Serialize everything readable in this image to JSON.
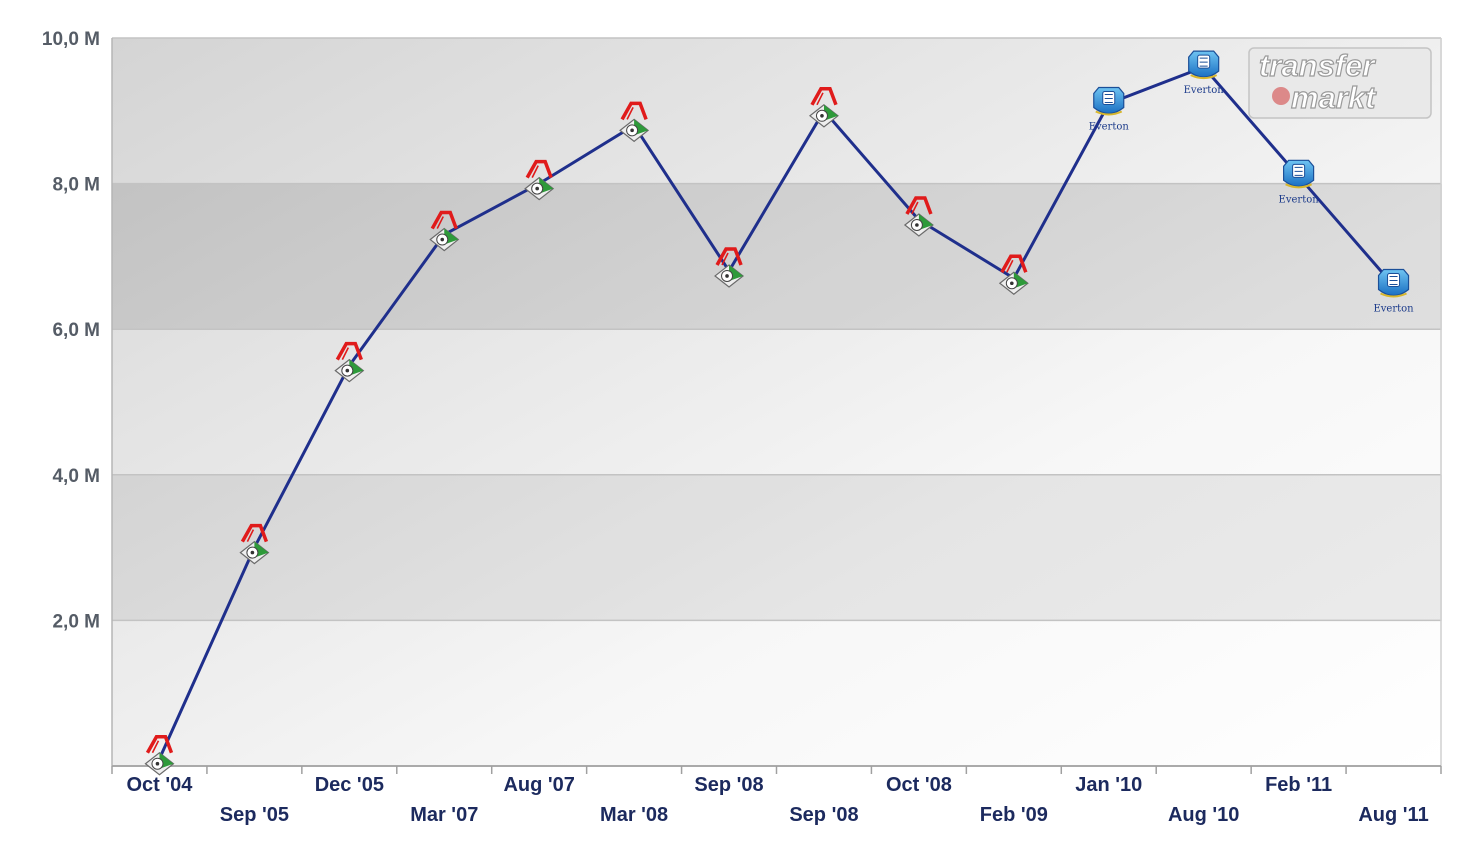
{
  "watermark": {
    "line1": "transfer",
    "line2": "markt"
  },
  "club_label": "Everton",
  "chart_data": {
    "type": "line",
    "title": "",
    "xlabel": "",
    "ylabel": "",
    "ylim": [
      0,
      10
    ],
    "yticks": [
      {
        "value": 2,
        "label": "2,0 M"
      },
      {
        "value": 4,
        "label": "4,0 M"
      },
      {
        "value": 6,
        "label": "6,0 M"
      },
      {
        "value": 8,
        "label": "8,0 M"
      },
      {
        "value": 10,
        "label": "10,0 M"
      }
    ],
    "grid": true,
    "line_color": "#1f2f8c",
    "categories": [
      "Oct '04",
      "Sep '05",
      "Dec '05",
      "Mar '07",
      "Aug '07",
      "Mar '08",
      "Sep '08",
      "Sep '08",
      "Oct '08",
      "Feb '09",
      "Jan '10",
      "Aug '10",
      "Feb '11",
      "Aug '11"
    ],
    "values": [
      0.1,
      3.0,
      5.5,
      7.3,
      8.0,
      8.8,
      6.8,
      9.0,
      7.5,
      6.7,
      9.1,
      9.6,
      8.1,
      6.6
    ],
    "clubs": [
      "lokomotiv",
      "lokomotiv",
      "lokomotiv",
      "lokomotiv",
      "lokomotiv",
      "lokomotiv",
      "lokomotiv",
      "lokomotiv",
      "lokomotiv",
      "lokomotiv",
      "everton",
      "everton",
      "everton",
      "everton"
    ]
  }
}
